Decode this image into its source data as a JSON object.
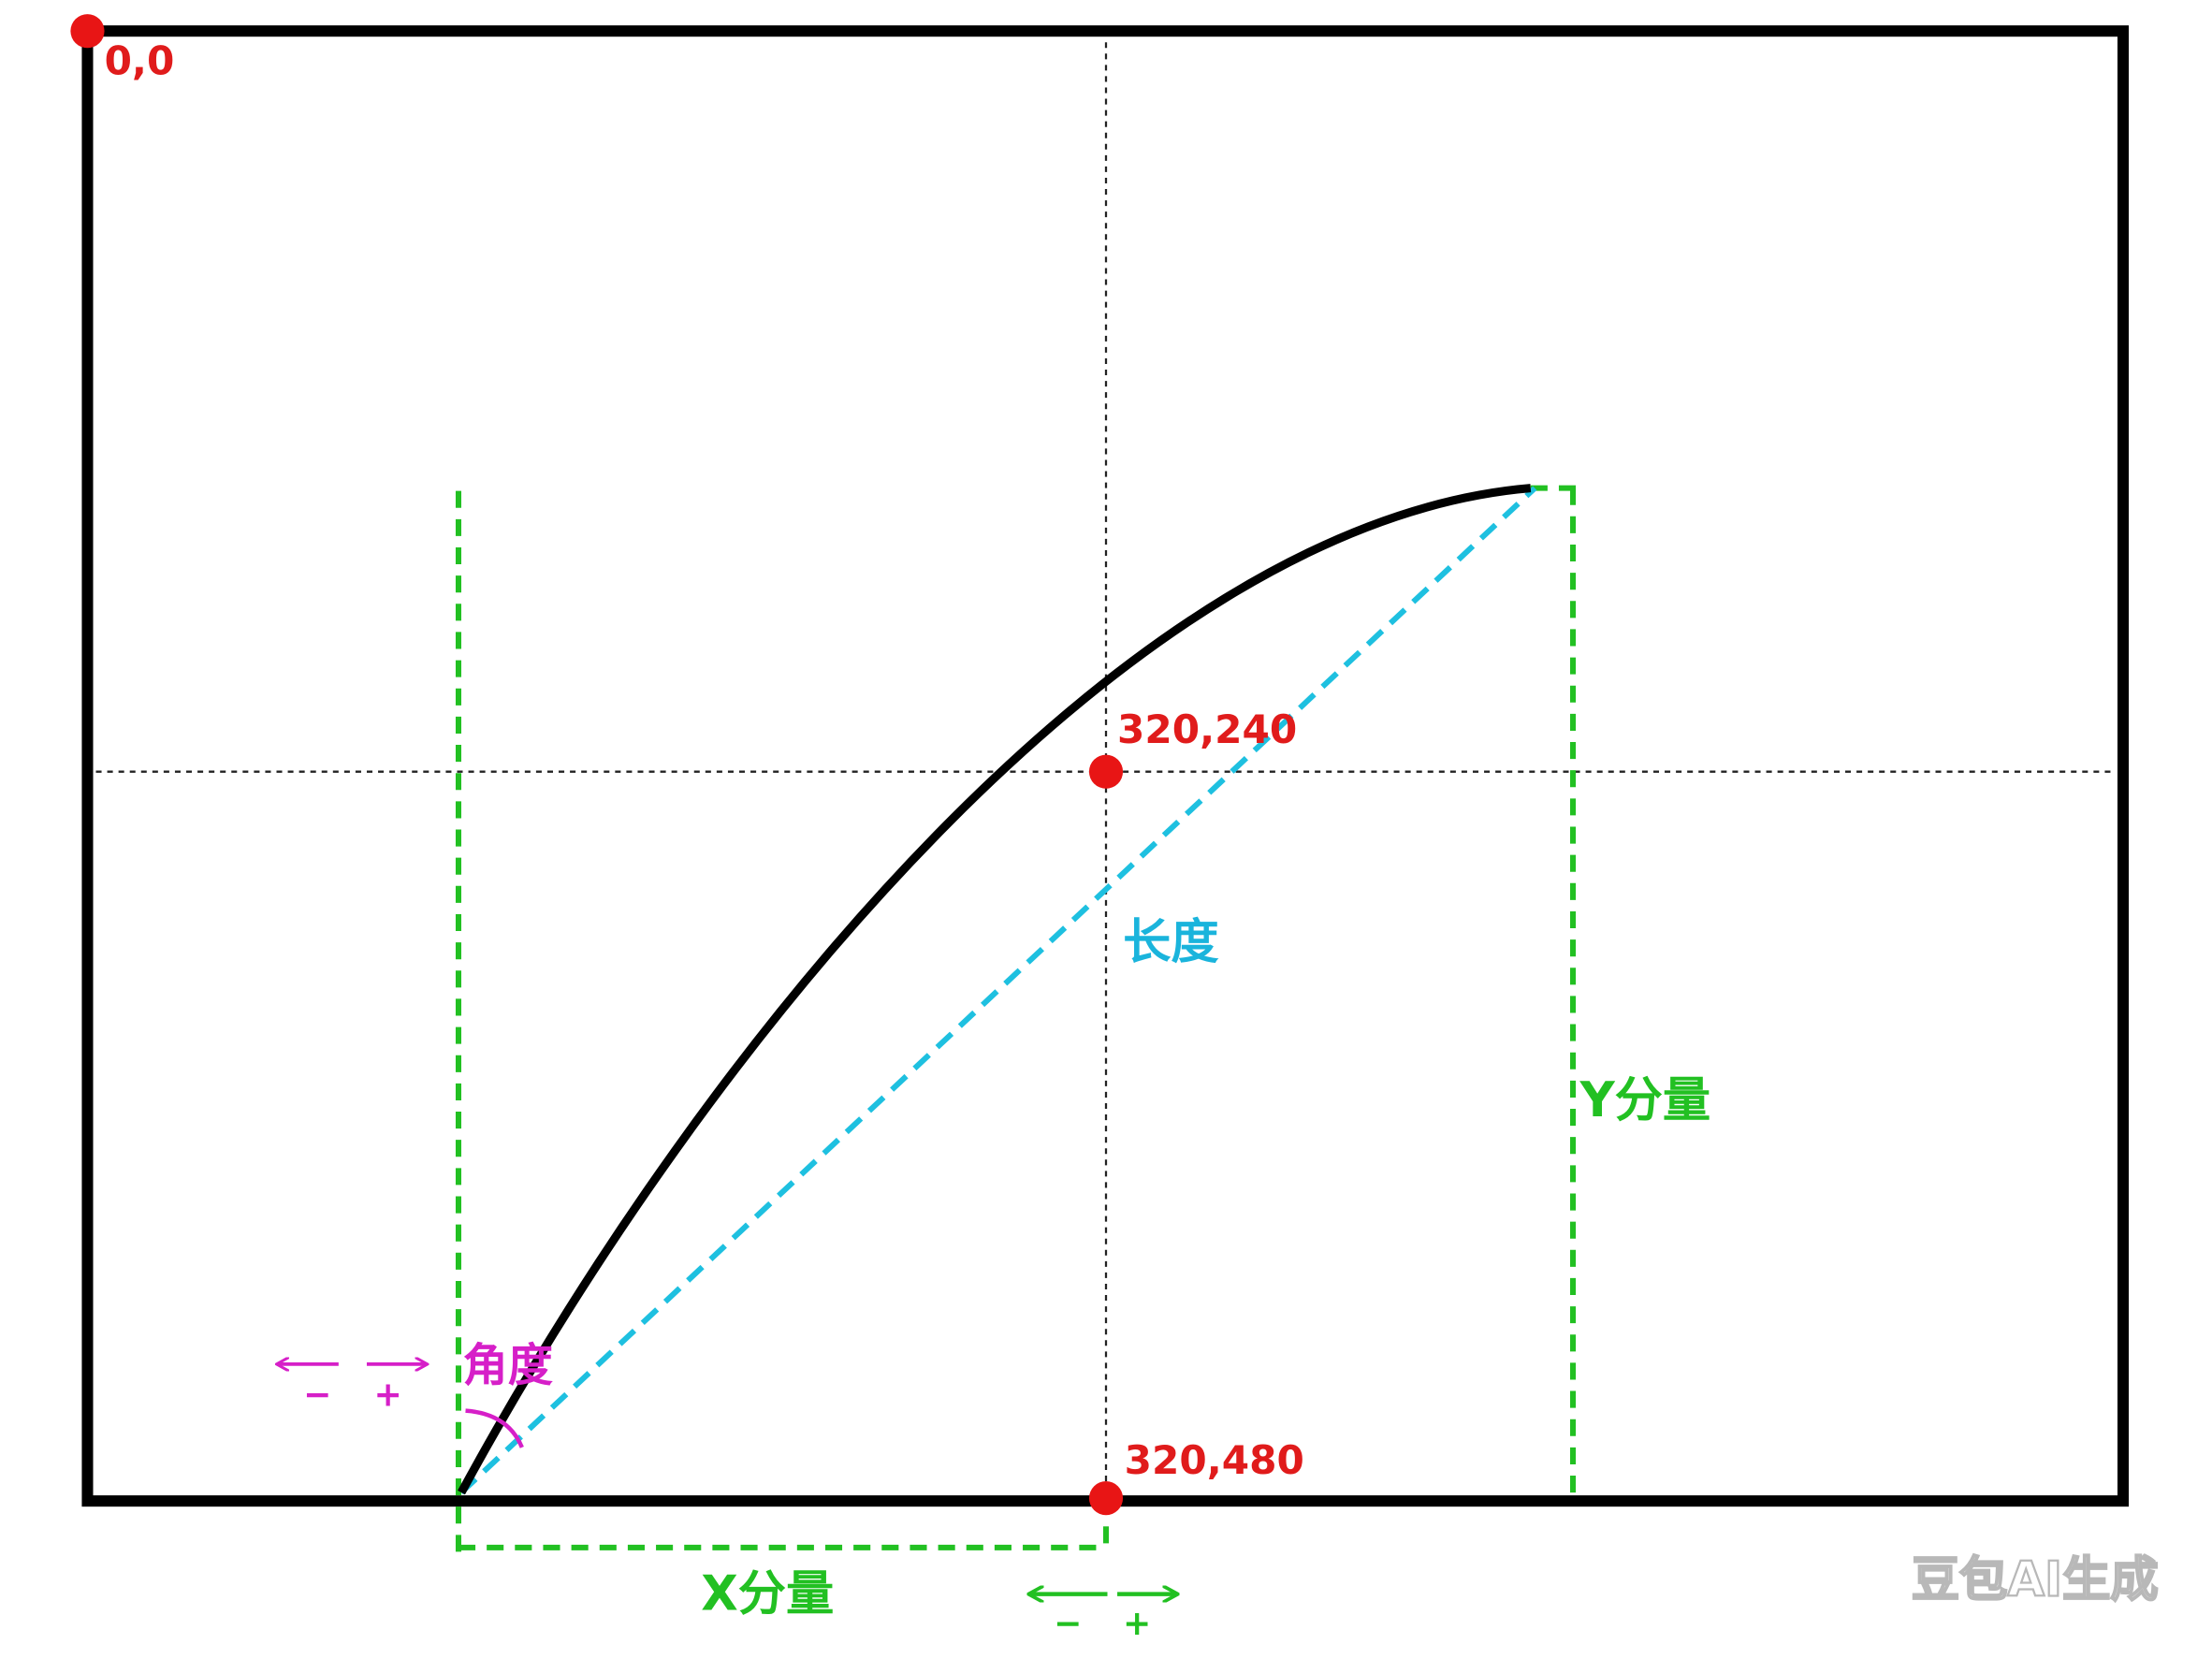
{
  "points": [
    {
      "label": "0,0"
    },
    {
      "label": "320,240"
    },
    {
      "label": "320,480"
    }
  ],
  "labels": {
    "length": "长度",
    "angle": "角度",
    "x_component": "X分量",
    "y_component": "Y分量"
  },
  "angle_signs": {
    "minus": "−",
    "plus": "+"
  },
  "x_signs": {
    "minus": "−",
    "plus": "+"
  },
  "watermark": "豆包AI生成"
}
